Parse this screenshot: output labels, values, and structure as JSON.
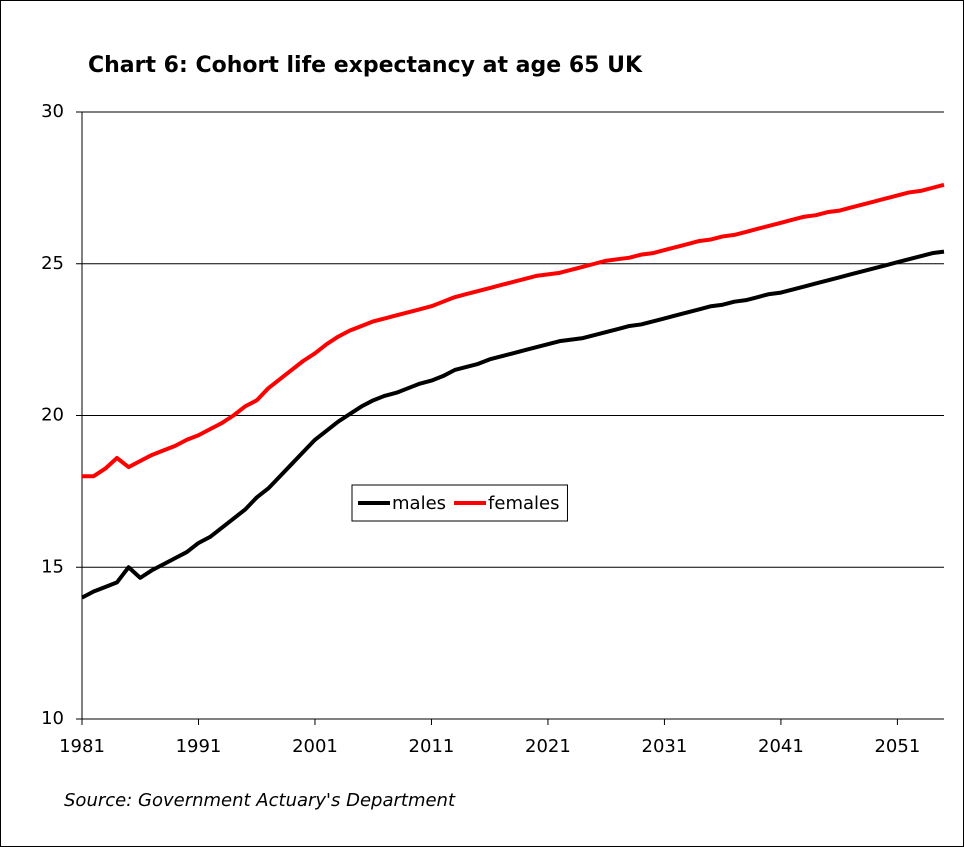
{
  "chart_data": {
    "type": "line",
    "title": "Chart 6: Cohort life expectancy at age 65 UK",
    "source": "Source: Government Actuary's Department",
    "x": [
      1981,
      1982,
      1983,
      1984,
      1985,
      1986,
      1987,
      1988,
      1989,
      1990,
      1991,
      1992,
      1993,
      1994,
      1995,
      1996,
      1997,
      1998,
      1999,
      2000,
      2001,
      2002,
      2003,
      2004,
      2005,
      2006,
      2007,
      2008,
      2009,
      2010,
      2011,
      2012,
      2013,
      2014,
      2015,
      2016,
      2017,
      2018,
      2019,
      2020,
      2021,
      2022,
      2023,
      2024,
      2025,
      2026,
      2027,
      2028,
      2029,
      2030,
      2031,
      2032,
      2033,
      2034,
      2035,
      2036,
      2037,
      2038,
      2039,
      2040,
      2041,
      2042,
      2043,
      2044,
      2045,
      2046,
      2047,
      2048,
      2049,
      2050,
      2051,
      2052,
      2053,
      2054,
      2055
    ],
    "series": [
      {
        "name": "males",
        "color": "#000000",
        "values": [
          14.0,
          14.2,
          14.35,
          14.5,
          15.0,
          14.65,
          14.9,
          15.1,
          15.3,
          15.5,
          15.8,
          16.0,
          16.3,
          16.6,
          16.9,
          17.3,
          17.6,
          18.0,
          18.4,
          18.8,
          19.2,
          19.5,
          19.8,
          20.05,
          20.3,
          20.5,
          20.65,
          20.75,
          20.9,
          21.05,
          21.15,
          21.3,
          21.5,
          21.6,
          21.7,
          21.85,
          21.95,
          22.05,
          22.15,
          22.25,
          22.35,
          22.45,
          22.5,
          22.55,
          22.65,
          22.75,
          22.85,
          22.95,
          23.0,
          23.1,
          23.2,
          23.3,
          23.4,
          23.5,
          23.6,
          23.65,
          23.75,
          23.8,
          23.9,
          24.0,
          24.05,
          24.15,
          24.25,
          24.35,
          24.45,
          24.55,
          24.65,
          24.75,
          24.85,
          24.95,
          25.05,
          25.15,
          25.25,
          25.35,
          25.4
        ]
      },
      {
        "name": "females",
        "color": "#ff0000",
        "values": [
          18.0,
          18.0,
          18.25,
          18.6,
          18.3,
          18.5,
          18.7,
          18.85,
          19.0,
          19.2,
          19.35,
          19.55,
          19.75,
          20.0,
          20.3,
          20.5,
          20.9,
          21.2,
          21.5,
          21.8,
          22.05,
          22.35,
          22.6,
          22.8,
          22.95,
          23.1,
          23.2,
          23.3,
          23.4,
          23.5,
          23.6,
          23.75,
          23.9,
          24.0,
          24.1,
          24.2,
          24.3,
          24.4,
          24.5,
          24.6,
          24.65,
          24.7,
          24.8,
          24.9,
          25.0,
          25.1,
          25.15,
          25.2,
          25.3,
          25.35,
          25.45,
          25.55,
          25.65,
          25.75,
          25.8,
          25.9,
          25.95,
          26.05,
          26.15,
          26.25,
          26.35,
          26.45,
          26.55,
          26.6,
          26.7,
          26.75,
          26.85,
          26.95,
          27.05,
          27.15,
          27.25,
          27.35,
          27.4,
          27.5,
          27.6
        ]
      }
    ],
    "xlim": [
      1981,
      2055
    ],
    "xticks": [
      1981,
      1991,
      2001,
      2011,
      2021,
      2031,
      2041,
      2051
    ],
    "ylim": [
      10,
      30
    ],
    "yticks": [
      10,
      15,
      20,
      25,
      30
    ],
    "grid": true,
    "legend": "center"
  }
}
